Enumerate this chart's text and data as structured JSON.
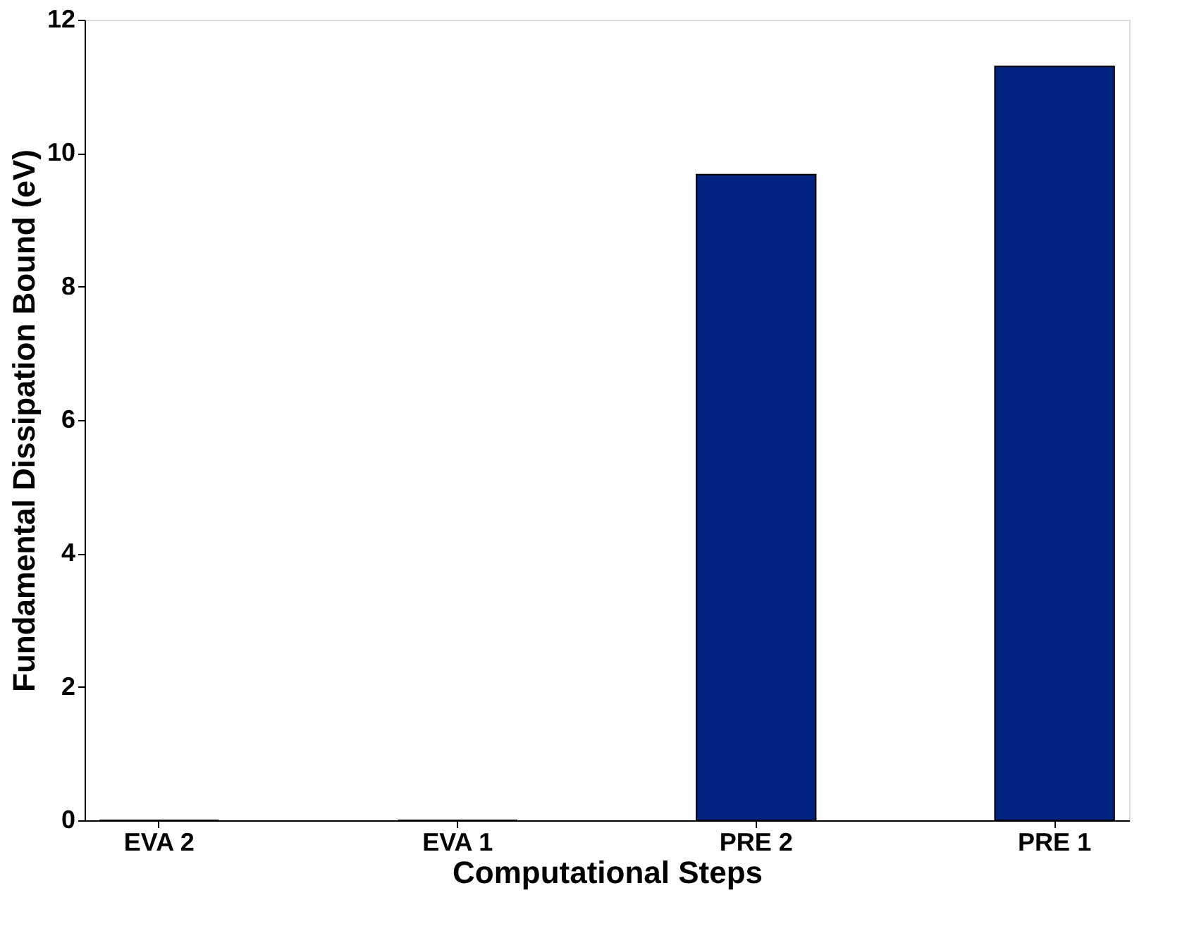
{
  "chart_data": {
    "type": "bar",
    "xlabel": "Computational Steps",
    "ylabel": "Fundamental Dissipation Bound (eV)",
    "categories": [
      "EVA 2",
      "EVA 1",
      "PRE 2",
      "PRE 1"
    ],
    "values": [
      0,
      0,
      9.68,
      11.3
    ],
    "color": "#00237f",
    "ylim": [
      0,
      12
    ],
    "yticks": [
      0,
      2,
      4,
      6,
      8,
      10,
      12
    ],
    "grid": false
  }
}
